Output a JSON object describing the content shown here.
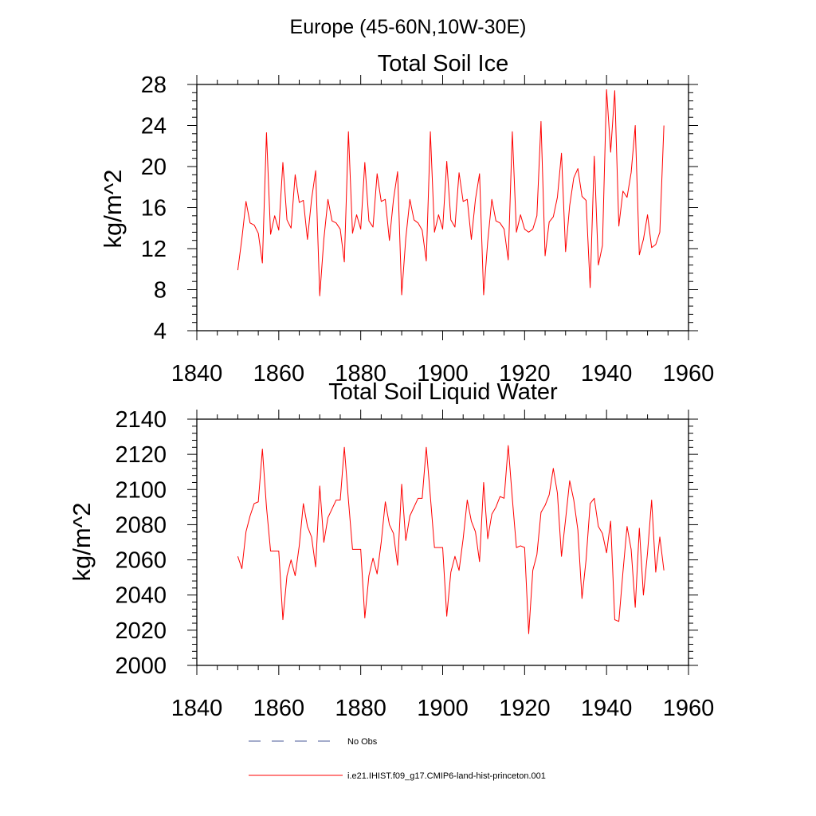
{
  "suptitle": "Europe (45-60N,10W-30E)",
  "colors": {
    "model": "#ff0000",
    "obs": "#4a5a9a",
    "axis": "#000000"
  },
  "legend": {
    "obs_label": "No Obs",
    "model_label": "i.e21.IHIST.f09_g17.CMIP6-land-hist-princeton.001"
  },
  "chart_data": [
    {
      "type": "line",
      "title": "Total Soil Ice",
      "xlabel": "",
      "ylabel": "kg/m^2",
      "xlim": [
        1840,
        1960
      ],
      "ylim": [
        4,
        28
      ],
      "xticks": [
        1840,
        1860,
        1880,
        1900,
        1920,
        1940,
        1960
      ],
      "yticks": [
        4,
        8,
        12,
        16,
        20,
        24,
        28
      ],
      "grid": false,
      "x_start": 1850,
      "series": [
        {
          "name": "i.e21.IHIST.f09_g17.CMIP6-land-hist-princeton.001",
          "values": [
            9.9,
            13.0,
            16.6,
            14.5,
            14.3,
            13.5,
            10.6,
            23.3,
            13.4,
            15.2,
            13.8,
            20.4,
            14.8,
            14.0,
            19.2,
            16.5,
            16.7,
            12.9,
            16.8,
            19.6,
            7.4,
            12.9,
            16.8,
            14.7,
            14.5,
            13.9,
            10.7,
            23.4,
            13.5,
            15.3,
            13.9,
            20.4,
            14.7,
            14.1,
            19.3,
            16.6,
            16.8,
            12.8,
            16.8,
            19.5,
            7.5,
            13.0,
            16.8,
            14.8,
            14.5,
            13.8,
            10.8,
            23.4,
            13.6,
            15.3,
            13.9,
            20.5,
            14.8,
            14.1,
            19.4,
            16.6,
            16.8,
            12.9,
            16.8,
            19.3,
            7.5,
            12.7,
            16.8,
            14.7,
            14.5,
            13.9,
            10.9,
            23.4,
            13.6,
            15.3,
            13.9,
            13.6,
            13.9,
            15.2,
            24.4,
            11.3,
            14.6,
            15.1,
            17.0,
            21.3,
            11.7,
            16.2,
            18.9,
            19.8,
            17.1,
            16.7,
            8.2,
            21.0,
            10.4,
            12.3,
            27.5,
            21.4,
            27.4,
            14.2,
            17.6,
            17.0,
            19.4,
            24.0,
            11.4,
            12.9,
            15.3,
            12.1,
            12.4,
            13.6,
            24.0
          ]
        }
      ]
    },
    {
      "type": "line",
      "title": "Total Soil Liquid Water",
      "xlabel": "",
      "ylabel": "kg/m^2",
      "xlim": [
        1840,
        1960
      ],
      "ylim": [
        2000,
        2140
      ],
      "xticks": [
        1840,
        1860,
        1880,
        1900,
        1920,
        1940,
        1960
      ],
      "yticks": [
        2000,
        2020,
        2040,
        2060,
        2080,
        2100,
        2120,
        2140
      ],
      "grid": false,
      "x_start": 1850,
      "series": [
        {
          "name": "i.e21.IHIST.f09_g17.CMIP6-land-hist-princeton.001",
          "values": [
            2062,
            2055,
            2076,
            2085,
            2092,
            2093,
            2123,
            2090,
            2065,
            2065,
            2065,
            2026,
            2051,
            2060,
            2051,
            2068,
            2092,
            2079,
            2073,
            2056,
            2102,
            2070,
            2084,
            2089,
            2094,
            2094,
            2124,
            2094,
            2066,
            2066,
            2066,
            2027,
            2051,
            2061,
            2052,
            2070,
            2093,
            2080,
            2075,
            2057,
            2103,
            2071,
            2085,
            2090,
            2095,
            2095,
            2124,
            2096,
            2067,
            2067,
            2067,
            2028,
            2053,
            2062,
            2054,
            2072,
            2094,
            2082,
            2076,
            2059,
            2104,
            2072,
            2086,
            2090,
            2096,
            2095,
            2125,
            2095,
            2067,
            2068,
            2067,
            2018,
            2054,
            2063,
            2087,
            2091,
            2097,
            2112,
            2098,
            2062,
            2083,
            2105,
            2094,
            2077,
            2038,
            2060,
            2092,
            2095,
            2079,
            2075,
            2064,
            2082,
            2026,
            2025,
            2053,
            2079,
            2066,
            2033,
            2078,
            2040,
            2064,
            2094,
            2053,
            2073,
            2054
          ]
        }
      ]
    }
  ]
}
